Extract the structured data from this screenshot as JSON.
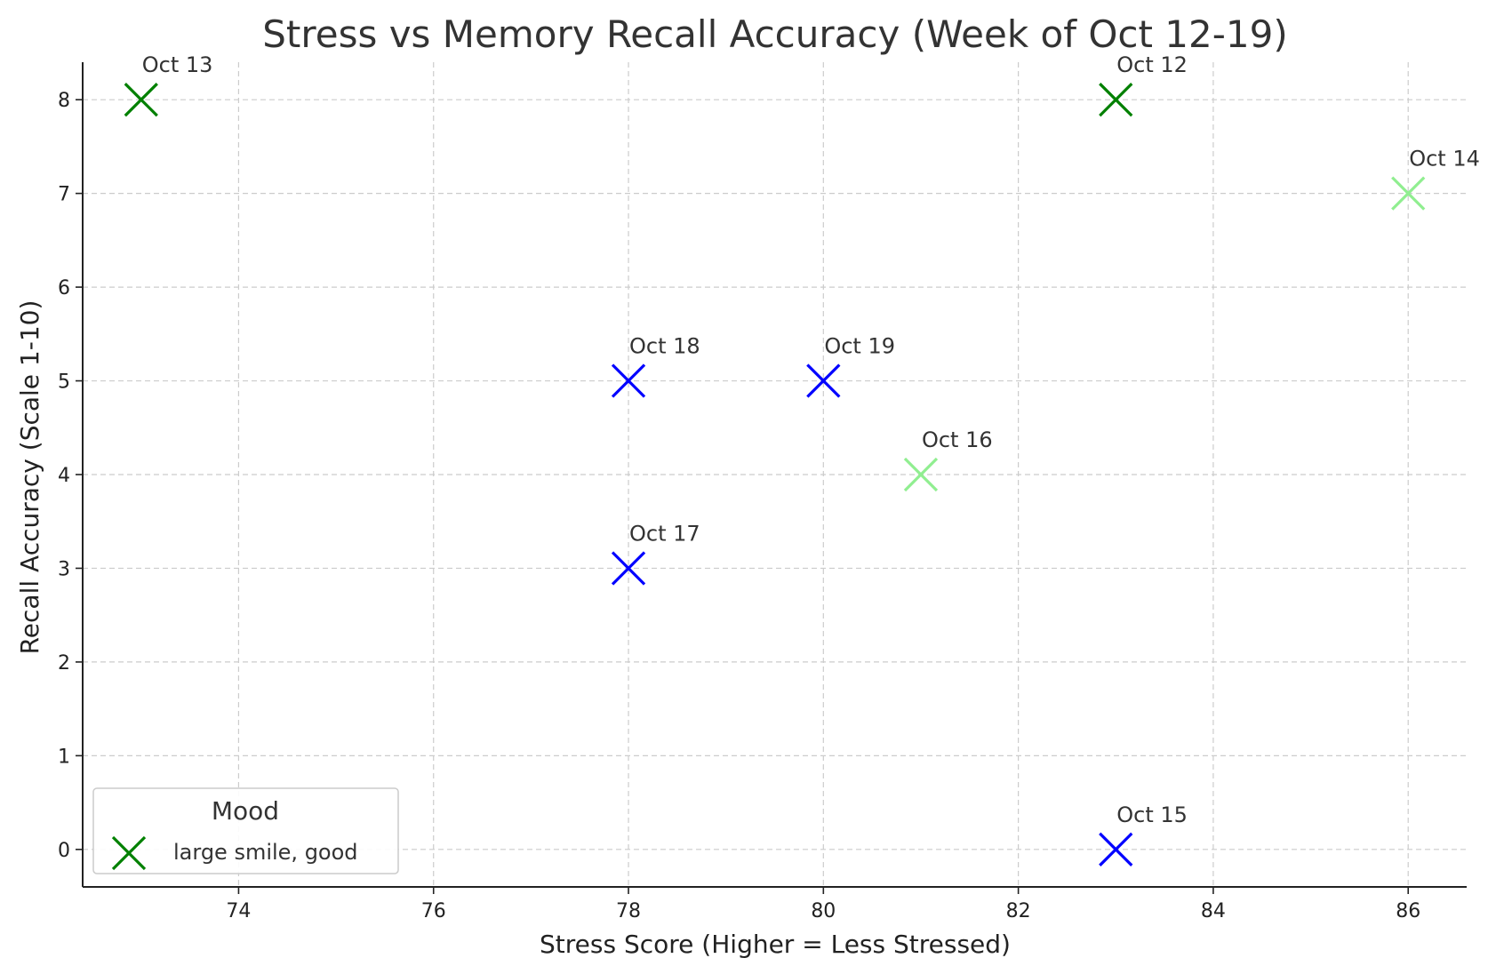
{
  "chart_data": {
    "type": "scatter",
    "title": "Stress vs Memory Recall Accuracy (Week of Oct 12-19)",
    "xlabel": "Stress Score (Higher = Less Stressed)",
    "ylabel": "Recall Accuracy (Scale 1-10)",
    "xlim": [
      72.4,
      86.6
    ],
    "ylim": [
      -0.4,
      8.4
    ],
    "xticks": [
      74,
      76,
      78,
      80,
      82,
      84,
      86
    ],
    "yticks": [
      0,
      1,
      2,
      3,
      4,
      5,
      6,
      7,
      8
    ],
    "grid": true,
    "marker": "x",
    "points": [
      {
        "label": "Oct 12",
        "x": 83,
        "y": 8,
        "color": "#008000"
      },
      {
        "label": "Oct 13",
        "x": 73,
        "y": 8,
        "color": "#008000"
      },
      {
        "label": "Oct 14",
        "x": 86,
        "y": 7,
        "color": "#90ee90"
      },
      {
        "label": "Oct 15",
        "x": 83,
        "y": 0,
        "color": "#0000ff"
      },
      {
        "label": "Oct 16",
        "x": 81,
        "y": 4,
        "color": "#90ee90"
      },
      {
        "label": "Oct 17",
        "x": 78,
        "y": 3,
        "color": "#0000ff"
      },
      {
        "label": "Oct 18",
        "x": 78,
        "y": 5,
        "color": "#0000ff"
      },
      {
        "label": "Oct 19",
        "x": 80,
        "y": 5,
        "color": "#0000ff"
      }
    ],
    "legend": {
      "title": "Mood",
      "placement": "lower-left",
      "entries": [
        {
          "label": "large smile, good",
          "color": "#008000"
        }
      ]
    }
  }
}
